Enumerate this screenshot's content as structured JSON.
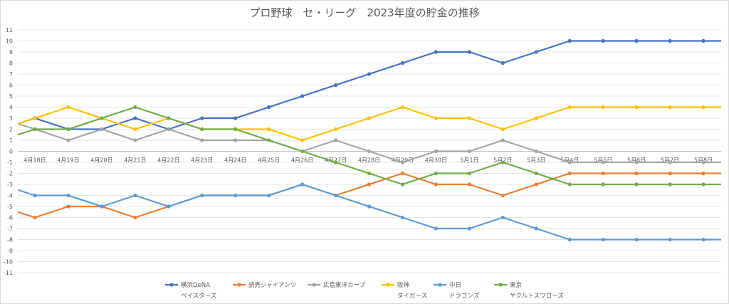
{
  "chart_data": {
    "type": "line",
    "title": "プロ野球　セ・リーグ　2023年度の貯金の推移",
    "xlabel": "",
    "ylabel": "",
    "ylim": [
      -11,
      11
    ],
    "yticks": [
      11,
      10,
      9,
      8,
      7,
      6,
      5,
      4,
      3,
      2,
      1,
      0,
      -1,
      -2,
      -3,
      -4,
      -5,
      -6,
      -7,
      -8,
      -9,
      -10,
      -11
    ],
    "categories": [
      "4月18日",
      "4月19日",
      "4月20日",
      "4月21日",
      "4月22日",
      "4月23日",
      "4月24日",
      "4月25日",
      "4月26日",
      "4月27日",
      "4月28日",
      "4月29日",
      "4月30日",
      "5月1日",
      "5月2日",
      "5月3日",
      "5月4日",
      "5月5日",
      "5月6日",
      "5月7日",
      "5月8日"
    ],
    "grid": true,
    "legend_position": "bottom",
    "series": [
      {
        "name": "横浜DeNA\nベイスターズ",
        "color": "#4472c4",
        "start": 2.5,
        "values": [
          3,
          2,
          2,
          3,
          2,
          3,
          3,
          4,
          5,
          6,
          7,
          8,
          9,
          9,
          8,
          9,
          10,
          10,
          10,
          10,
          10
        ],
        "end": 10
      },
      {
        "name": "読売ジャイアンツ",
        "color": "#ed7d31",
        "start": -5.5,
        "values": [
          -6,
          -5,
          -5,
          -6,
          -5,
          -4,
          -4,
          -4,
          -3,
          -4,
          -3,
          -2,
          -3,
          -3,
          -4,
          -3,
          -2,
          -2,
          -2,
          -2,
          -2
        ],
        "end": -2
      },
      {
        "name": "広島東洋カープ",
        "color": "#a5a5a5",
        "start": 2.5,
        "values": [
          2,
          1,
          2,
          1,
          2,
          1,
          1,
          1,
          0,
          1,
          0,
          -1,
          0,
          0,
          1,
          0,
          -1,
          -1,
          -1,
          -1,
          -1
        ],
        "end": -1
      },
      {
        "name": "阪神\nタイガース",
        "color": "#ffc000",
        "start": 2.5,
        "values": [
          3,
          4,
          3,
          2,
          3,
          2,
          2,
          2,
          1,
          2,
          3,
          4,
          3,
          3,
          2,
          3,
          4,
          4,
          4,
          4,
          4
        ],
        "end": 4
      },
      {
        "name": "中日\nドラゴンズ",
        "color": "#5b9bd5",
        "start": -3.5,
        "values": [
          -4,
          -4,
          -5,
          -4,
          -5,
          -4,
          -4,
          -4,
          -3,
          -4,
          -5,
          -6,
          -7,
          -7,
          -6,
          -7,
          -8,
          -8,
          -8,
          -8,
          -8
        ],
        "end": -8
      },
      {
        "name": "東京\nヤクルトスワローズ",
        "color": "#70ad47",
        "start": 1.5,
        "values": [
          2,
          2,
          3,
          4,
          3,
          2,
          2,
          1,
          0,
          -1,
          -2,
          -3,
          -2,
          -2,
          -1,
          -2,
          -3,
          -3,
          -3,
          -3,
          -3
        ],
        "end": -3
      }
    ]
  }
}
